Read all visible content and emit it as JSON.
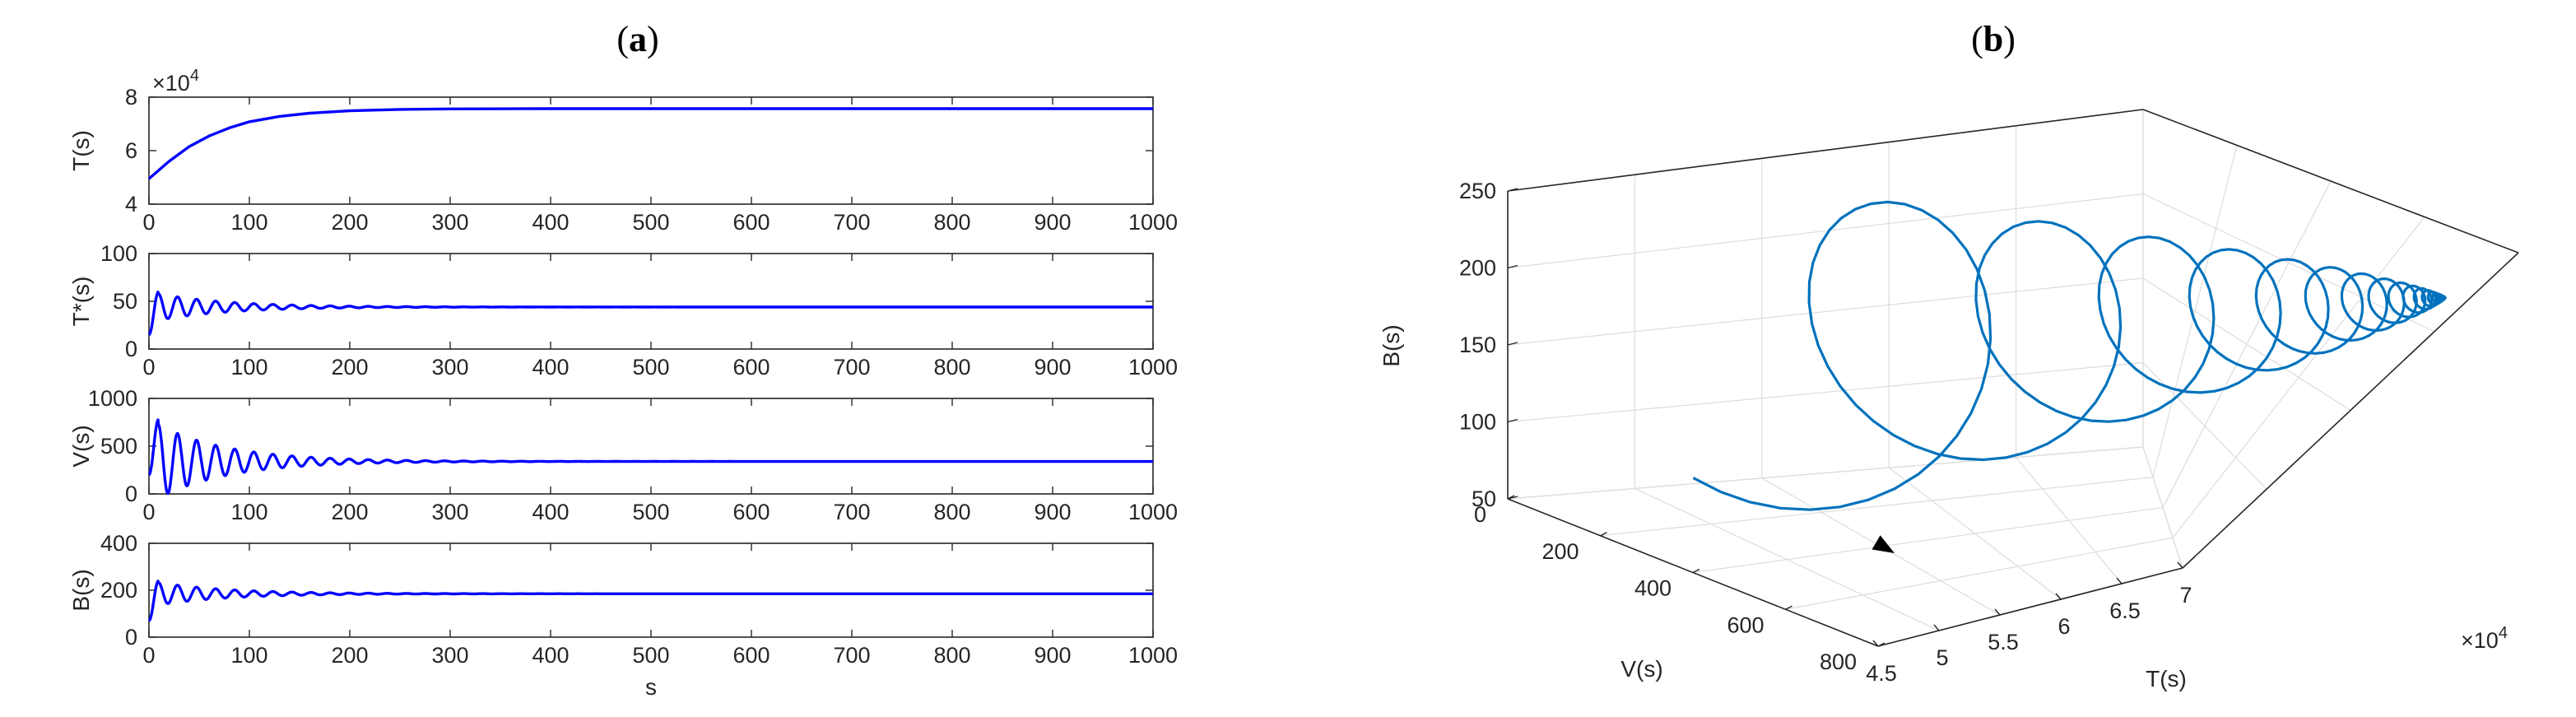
{
  "panels": {
    "a": {
      "title_open": "(",
      "title_letter": "a",
      "title_close": ")"
    },
    "b": {
      "title_open": "(",
      "title_letter": "b",
      "title_close": ")"
    }
  },
  "chart_data": [
    {
      "type": "line",
      "panel": "a",
      "ylabel": "T(s)",
      "exponent_label": "×10",
      "exponent": "4",
      "xlim": [
        0,
        1000
      ],
      "ylim": [
        40000,
        80000
      ],
      "x_ticks": [
        "0",
        "100",
        "200",
        "300",
        "400",
        "500",
        "600",
        "700",
        "800",
        "900",
        "1000"
      ],
      "y_ticks": [
        "4",
        "6",
        "8"
      ],
      "color": "#0000ff",
      "series": [
        {
          "x": [
            0,
            20,
            40,
            60,
            80,
            100,
            130,
            160,
            200,
            250,
            300,
            400,
            500,
            600,
            700,
            800,
            900,
            1000
          ],
          "values": [
            49500,
            56000,
            61500,
            65500,
            68500,
            70800,
            72800,
            74000,
            74900,
            75400,
            75600,
            75700,
            75700,
            75700,
            75700,
            75700,
            75700,
            75700
          ]
        }
      ]
    },
    {
      "type": "line",
      "panel": "a",
      "ylabel": "T*(s)",
      "xlim": [
        0,
        1000
      ],
      "ylim": [
        0,
        100
      ],
      "x_ticks": [
        "0",
        "100",
        "200",
        "300",
        "400",
        "500",
        "600",
        "700",
        "800",
        "900",
        "1000"
      ],
      "y_ticks": [
        "0",
        "50",
        "100"
      ],
      "color": "#0000ff",
      "series": [
        {
          "model": "damped_oscillation",
          "start": 15,
          "peak": 60,
          "equilibrium": 44,
          "period": 19,
          "decay": 70
        }
      ]
    },
    {
      "type": "line",
      "panel": "a",
      "ylabel": "V(s)",
      "xlim": [
        0,
        1000
      ],
      "ylim": [
        0,
        1000
      ],
      "x_ticks": [
        "0",
        "100",
        "200",
        "300",
        "400",
        "500",
        "600",
        "700",
        "800",
        "900",
        "1000"
      ],
      "y_ticks": [
        "0",
        "500",
        "1000"
      ],
      "color": "#0000ff",
      "series": [
        {
          "model": "damped_oscillation",
          "start": 200,
          "peak": 780,
          "equilibrium": 340,
          "period": 19,
          "decay": 70
        }
      ]
    },
    {
      "type": "line",
      "panel": "a",
      "ylabel": "B(s)",
      "xlabel": "s",
      "xlim": [
        0,
        1000
      ],
      "ylim": [
        0,
        400
      ],
      "x_ticks": [
        "0",
        "100",
        "200",
        "300",
        "400",
        "500",
        "600",
        "700",
        "800",
        "900",
        "1000"
      ],
      "y_ticks": [
        "0",
        "200",
        "400"
      ],
      "color": "#0000ff",
      "series": [
        {
          "model": "damped_oscillation",
          "start": 70,
          "peak": 240,
          "equilibrium": 185,
          "period": 19,
          "decay": 70
        }
      ]
    },
    {
      "type": "line3d",
      "panel": "b",
      "xlabel": "T(s)",
      "ylabel": "V(s)",
      "zlabel": "B(s)",
      "exponent_label": "×10",
      "exponent": "4",
      "x_ticks": [
        "4.5",
        "5",
        "5.5",
        "6",
        "6.5",
        "7"
      ],
      "y_ticks": [
        "0",
        "200",
        "400",
        "600",
        "800"
      ],
      "z_ticks": [
        "50",
        "100",
        "150",
        "200",
        "250"
      ],
      "xlim": [
        45000,
        70000
      ],
      "ylim": [
        0,
        800
      ],
      "zlim": [
        50,
        250
      ],
      "color": "#0072bd",
      "arrow_color": "#000000",
      "trajectory": {
        "start": [
          50000,
          200,
          70
        ],
        "equilibrium": [
          75700,
          340,
          185
        ]
      }
    }
  ]
}
